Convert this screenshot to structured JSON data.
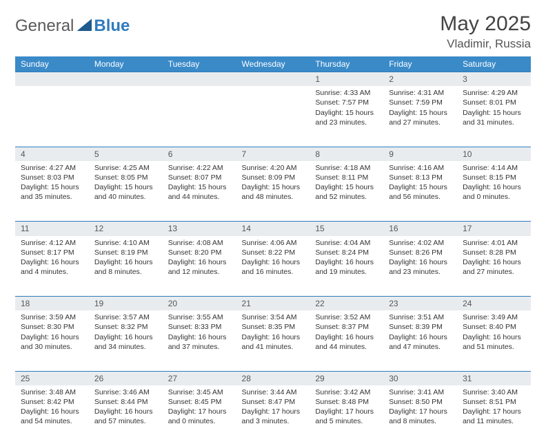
{
  "brand": {
    "part1": "General",
    "part2": "Blue"
  },
  "title": "May 2025",
  "location": "Vladimir, Russia",
  "day_headers": [
    "Sunday",
    "Monday",
    "Tuesday",
    "Wednesday",
    "Thursday",
    "Friday",
    "Saturday"
  ],
  "colors": {
    "header_bg": "#3a8ac8",
    "header_text": "#ffffff",
    "day_border": "#2f7bbf",
    "daynum_bg": "#e9ecef",
    "text": "#333333"
  },
  "weeks": [
    [
      null,
      null,
      null,
      null,
      {
        "num": "1",
        "sunrise": "Sunrise: 4:33 AM",
        "sunset": "Sunset: 7:57 PM",
        "daylight": "Daylight: 15 hours and 23 minutes."
      },
      {
        "num": "2",
        "sunrise": "Sunrise: 4:31 AM",
        "sunset": "Sunset: 7:59 PM",
        "daylight": "Daylight: 15 hours and 27 minutes."
      },
      {
        "num": "3",
        "sunrise": "Sunrise: 4:29 AM",
        "sunset": "Sunset: 8:01 PM",
        "daylight": "Daylight: 15 hours and 31 minutes."
      }
    ],
    [
      {
        "num": "4",
        "sunrise": "Sunrise: 4:27 AM",
        "sunset": "Sunset: 8:03 PM",
        "daylight": "Daylight: 15 hours and 35 minutes."
      },
      {
        "num": "5",
        "sunrise": "Sunrise: 4:25 AM",
        "sunset": "Sunset: 8:05 PM",
        "daylight": "Daylight: 15 hours and 40 minutes."
      },
      {
        "num": "6",
        "sunrise": "Sunrise: 4:22 AM",
        "sunset": "Sunset: 8:07 PM",
        "daylight": "Daylight: 15 hours and 44 minutes."
      },
      {
        "num": "7",
        "sunrise": "Sunrise: 4:20 AM",
        "sunset": "Sunset: 8:09 PM",
        "daylight": "Daylight: 15 hours and 48 minutes."
      },
      {
        "num": "8",
        "sunrise": "Sunrise: 4:18 AM",
        "sunset": "Sunset: 8:11 PM",
        "daylight": "Daylight: 15 hours and 52 minutes."
      },
      {
        "num": "9",
        "sunrise": "Sunrise: 4:16 AM",
        "sunset": "Sunset: 8:13 PM",
        "daylight": "Daylight: 15 hours and 56 minutes."
      },
      {
        "num": "10",
        "sunrise": "Sunrise: 4:14 AM",
        "sunset": "Sunset: 8:15 PM",
        "daylight": "Daylight: 16 hours and 0 minutes."
      }
    ],
    [
      {
        "num": "11",
        "sunrise": "Sunrise: 4:12 AM",
        "sunset": "Sunset: 8:17 PM",
        "daylight": "Daylight: 16 hours and 4 minutes."
      },
      {
        "num": "12",
        "sunrise": "Sunrise: 4:10 AM",
        "sunset": "Sunset: 8:19 PM",
        "daylight": "Daylight: 16 hours and 8 minutes."
      },
      {
        "num": "13",
        "sunrise": "Sunrise: 4:08 AM",
        "sunset": "Sunset: 8:20 PM",
        "daylight": "Daylight: 16 hours and 12 minutes."
      },
      {
        "num": "14",
        "sunrise": "Sunrise: 4:06 AM",
        "sunset": "Sunset: 8:22 PM",
        "daylight": "Daylight: 16 hours and 16 minutes."
      },
      {
        "num": "15",
        "sunrise": "Sunrise: 4:04 AM",
        "sunset": "Sunset: 8:24 PM",
        "daylight": "Daylight: 16 hours and 19 minutes."
      },
      {
        "num": "16",
        "sunrise": "Sunrise: 4:02 AM",
        "sunset": "Sunset: 8:26 PM",
        "daylight": "Daylight: 16 hours and 23 minutes."
      },
      {
        "num": "17",
        "sunrise": "Sunrise: 4:01 AM",
        "sunset": "Sunset: 8:28 PM",
        "daylight": "Daylight: 16 hours and 27 minutes."
      }
    ],
    [
      {
        "num": "18",
        "sunrise": "Sunrise: 3:59 AM",
        "sunset": "Sunset: 8:30 PM",
        "daylight": "Daylight: 16 hours and 30 minutes."
      },
      {
        "num": "19",
        "sunrise": "Sunrise: 3:57 AM",
        "sunset": "Sunset: 8:32 PM",
        "daylight": "Daylight: 16 hours and 34 minutes."
      },
      {
        "num": "20",
        "sunrise": "Sunrise: 3:55 AM",
        "sunset": "Sunset: 8:33 PM",
        "daylight": "Daylight: 16 hours and 37 minutes."
      },
      {
        "num": "21",
        "sunrise": "Sunrise: 3:54 AM",
        "sunset": "Sunset: 8:35 PM",
        "daylight": "Daylight: 16 hours and 41 minutes."
      },
      {
        "num": "22",
        "sunrise": "Sunrise: 3:52 AM",
        "sunset": "Sunset: 8:37 PM",
        "daylight": "Daylight: 16 hours and 44 minutes."
      },
      {
        "num": "23",
        "sunrise": "Sunrise: 3:51 AM",
        "sunset": "Sunset: 8:39 PM",
        "daylight": "Daylight: 16 hours and 47 minutes."
      },
      {
        "num": "24",
        "sunrise": "Sunrise: 3:49 AM",
        "sunset": "Sunset: 8:40 PM",
        "daylight": "Daylight: 16 hours and 51 minutes."
      }
    ],
    [
      {
        "num": "25",
        "sunrise": "Sunrise: 3:48 AM",
        "sunset": "Sunset: 8:42 PM",
        "daylight": "Daylight: 16 hours and 54 minutes."
      },
      {
        "num": "26",
        "sunrise": "Sunrise: 3:46 AM",
        "sunset": "Sunset: 8:44 PM",
        "daylight": "Daylight: 16 hours and 57 minutes."
      },
      {
        "num": "27",
        "sunrise": "Sunrise: 3:45 AM",
        "sunset": "Sunset: 8:45 PM",
        "daylight": "Daylight: 17 hours and 0 minutes."
      },
      {
        "num": "28",
        "sunrise": "Sunrise: 3:44 AM",
        "sunset": "Sunset: 8:47 PM",
        "daylight": "Daylight: 17 hours and 3 minutes."
      },
      {
        "num": "29",
        "sunrise": "Sunrise: 3:42 AM",
        "sunset": "Sunset: 8:48 PM",
        "daylight": "Daylight: 17 hours and 5 minutes."
      },
      {
        "num": "30",
        "sunrise": "Sunrise: 3:41 AM",
        "sunset": "Sunset: 8:50 PM",
        "daylight": "Daylight: 17 hours and 8 minutes."
      },
      {
        "num": "31",
        "sunrise": "Sunrise: 3:40 AM",
        "sunset": "Sunset: 8:51 PM",
        "daylight": "Daylight: 17 hours and 11 minutes."
      }
    ]
  ]
}
